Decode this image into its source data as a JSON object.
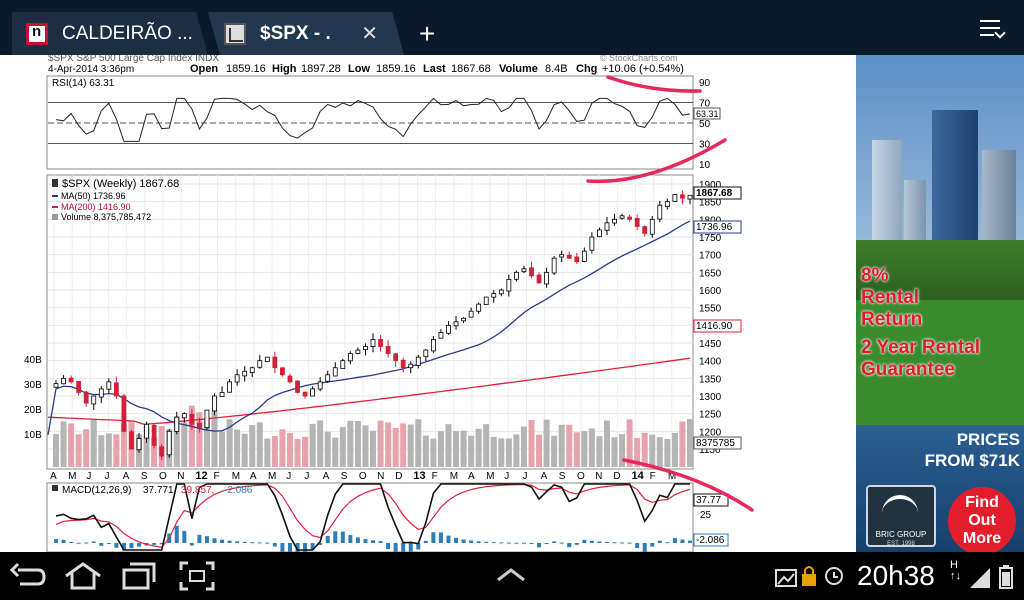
{
  "tabs": [
    {
      "title": "CALDEIRÃO ..."
    },
    {
      "title": "$SPX - ."
    }
  ],
  "tab_close": "✕",
  "new_tab": "+",
  "chart_header": {
    "symbol_line": "$SPX S&P 500 Large Cap Index INDX",
    "source": "© StockCharts.com",
    "datetime": "4-Apr-2014 3:36pm",
    "quote_labels": {
      "open": "Open",
      "high": "High",
      "low": "Low",
      "last": "Last",
      "volume": "Volume",
      "chg": "Chg"
    },
    "quote_values": {
      "open": "1859.16",
      "high": "1897.28",
      "low": "1859.16",
      "last": "1867.68",
      "volume": "8.4B",
      "chg": "+10.06 (+0.54%)"
    }
  },
  "rsi": {
    "label": "RSI(14) 63.31",
    "value_tag": "63.31",
    "ticks": [
      "90",
      "70",
      "50",
      "30",
      "10"
    ]
  },
  "main": {
    "legend": [
      "$SPX (Weekly) 1867.68",
      "MA(50) 1736.96",
      "MA(200) 1416.90",
      "Volume 8,375,785,472"
    ],
    "price_ticks": [
      "1900",
      "1850",
      "1800",
      "1750",
      "1700",
      "1650",
      "1600",
      "1550",
      "1500",
      "1450",
      "1400",
      "1350",
      "1300",
      "1250",
      "1200",
      "1150"
    ],
    "volume_ticks": [
      "40B",
      "30B",
      "20B",
      "10B"
    ],
    "tags": {
      "last": "1867.68",
      "ma50": "1736.96",
      "ma200": "1416.90",
      "volume": "8375785"
    }
  },
  "x_axis_labels": [
    "A",
    "M",
    "J",
    "J",
    "A",
    "S",
    "O",
    "N",
    "12",
    "F",
    "M",
    "A",
    "M",
    "J",
    "J",
    "A",
    "S",
    "O",
    "N",
    "D",
    "13",
    "F",
    "M",
    "A",
    "M",
    "J",
    "J",
    "A",
    "S",
    "O",
    "N",
    "D",
    "14",
    "F",
    "M"
  ],
  "macd": {
    "label_prefix": "MACD(12,26,9)",
    "v1": "37.771,",
    "v2": "39.857,",
    "v3": "-2.086",
    "tags": [
      "37.77",
      "-2.086"
    ],
    "tick": "25"
  },
  "chart_data": {
    "type": "candlestick",
    "title": "$SPX (Weekly) 1867.68",
    "interval": "weekly",
    "x_range": [
      "Apr 2011",
      "Apr 2014"
    ],
    "ylim": [
      1100,
      1920
    ],
    "weekly_close_path": [
      1335,
      1350,
      1340,
      1310,
      1280,
      1300,
      1320,
      1340,
      1300,
      1200,
      1150,
      1180,
      1220,
      1160,
      1130,
      1200,
      1240,
      1250,
      1220,
      1210,
      1260,
      1300,
      1310,
      1340,
      1360,
      1370,
      1380,
      1400,
      1410,
      1380,
      1360,
      1340,
      1310,
      1300,
      1320,
      1340,
      1360,
      1380,
      1400,
      1420,
      1430,
      1440,
      1460,
      1440,
      1420,
      1400,
      1380,
      1390,
      1410,
      1430,
      1460,
      1480,
      1500,
      1510,
      1520,
      1540,
      1560,
      1580,
      1590,
      1600,
      1630,
      1650,
      1660,
      1640,
      1620,
      1650,
      1690,
      1700,
      1690,
      1680,
      1710,
      1750,
      1770,
      1790,
      1800,
      1810,
      1800,
      1780,
      1760,
      1800,
      1840,
      1850,
      1870,
      1860,
      1868
    ],
    "series": [
      {
        "name": "MA(50)",
        "last": 1736.96
      },
      {
        "name": "MA(200)",
        "last": 1416.9
      }
    ],
    "quote": {
      "open": 1859.16,
      "high": 1897.28,
      "low": 1859.16,
      "last": 1867.68,
      "volume": "8.4B",
      "change": 10.06,
      "change_pct": 0.54
    },
    "rsi": {
      "period": 14,
      "last": 63.31,
      "levels": [
        70,
        30
      ]
    },
    "macd": {
      "params": [
        12,
        26,
        9
      ],
      "macd": 37.771,
      "signal": 39.857,
      "histogram": -2.086
    },
    "volume_last": 8375785472
  },
  "ad": {
    "line1": "8%",
    "line2": "Rental",
    "line3": "Return",
    "line4": "2 Year Rental",
    "line5": "Guarantee",
    "price1": "PRICES",
    "price2": "FROM $71K",
    "logo": "BRIC GROUP",
    "logo_sub": "EST. 1998",
    "find1": "Find",
    "find2": "Out",
    "find3": "More"
  },
  "status": {
    "time": "20h38",
    "net": "H",
    "net2": "↑↓"
  },
  "colors": {
    "tab_bar": "#0b1a2a",
    "ma50": "#2a3b8f",
    "ma200": "#e0203a",
    "annotation": "#e8275a",
    "up": "#000000",
    "down": "#d0223a"
  }
}
